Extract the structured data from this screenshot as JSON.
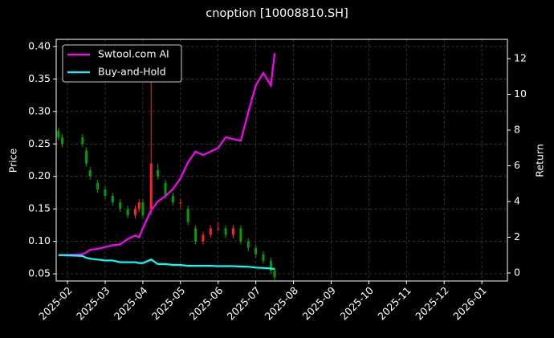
{
  "chart_data": {
    "type": "candlestick",
    "title": "cnoption [10008810.SH]",
    "ylabel": "Price",
    "y2label": "Return",
    "x": [
      0.76,
      0.86,
      1.4,
      1.5,
      1.6,
      1.8,
      2.0,
      2.2,
      2.4,
      2.6,
      2.8,
      2.9,
      3.0,
      3.22,
      3.4,
      3.6,
      3.8,
      4.0,
      4.2,
      4.4,
      4.6,
      4.8,
      5.0,
      5.2,
      5.4,
      5.6,
      5.8,
      6.0,
      6.2,
      6.4,
      6.5
    ],
    "open": [
      0.27,
      0.26,
      0.26,
      0.24,
      0.21,
      0.19,
      0.18,
      0.17,
      0.16,
      0.15,
      0.14,
      0.15,
      0.16,
      0.15,
      0.21,
      0.19,
      0.17,
      0.16,
      0.15,
      0.12,
      0.1,
      0.11,
      0.12,
      0.12,
      0.11,
      0.12,
      0.1,
      0.09,
      0.08,
      0.07,
      0.055
    ],
    "high": [
      0.275,
      0.265,
      0.265,
      0.245,
      0.215,
      0.195,
      0.185,
      0.175,
      0.165,
      0.155,
      0.155,
      0.165,
      0.165,
      0.345,
      0.22,
      0.195,
      0.175,
      0.165,
      0.155,
      0.125,
      0.115,
      0.125,
      0.13,
      0.125,
      0.125,
      0.125,
      0.105,
      0.095,
      0.085,
      0.075,
      0.06
    ],
    "low": [
      0.255,
      0.245,
      0.245,
      0.215,
      0.195,
      0.175,
      0.165,
      0.155,
      0.145,
      0.135,
      0.135,
      0.145,
      0.135,
      0.14,
      0.195,
      0.165,
      0.155,
      0.15,
      0.125,
      0.095,
      0.095,
      0.105,
      0.115,
      0.105,
      0.105,
      0.095,
      0.085,
      0.075,
      0.065,
      0.05,
      0.04
    ],
    "close": [
      0.26,
      0.25,
      0.25,
      0.22,
      0.2,
      0.18,
      0.17,
      0.16,
      0.15,
      0.14,
      0.15,
      0.16,
      0.14,
      0.22,
      0.2,
      0.17,
      0.16,
      0.16,
      0.13,
      0.1,
      0.11,
      0.12,
      0.12,
      0.11,
      0.12,
      0.1,
      0.09,
      0.08,
      0.07,
      0.055,
      0.045
    ],
    "up_color": "#ff2020",
    "down_color": "#00a000",
    "series": [
      {
        "name": "Swtool.com AI",
        "color": "#ff00ff",
        "axis": "y2",
        "values": [
          1.0,
          1.0,
          1.05,
          1.15,
          1.3,
          1.35,
          1.45,
          1.55,
          1.6,
          1.9,
          2.1,
          2.0,
          2.5,
          3.5,
          4.0,
          4.3,
          4.7,
          5.3,
          6.2,
          6.8,
          6.6,
          6.8,
          7.0,
          7.6,
          7.5,
          7.4,
          9.0,
          10.5,
          11.2,
          10.5,
          12.3
        ]
      },
      {
        "name": "Buy-and-Hold",
        "color": "#00ffff",
        "axis": "y2",
        "values": [
          1.0,
          1.0,
          0.95,
          0.85,
          0.8,
          0.75,
          0.7,
          0.7,
          0.6,
          0.6,
          0.6,
          0.55,
          0.55,
          0.75,
          0.5,
          0.5,
          0.45,
          0.45,
          0.4,
          0.4,
          0.4,
          0.4,
          0.38,
          0.38,
          0.38,
          0.36,
          0.35,
          0.3,
          0.28,
          0.25,
          0.22
        ]
      }
    ],
    "xlim": [
      0.7,
      12.68
    ],
    "xticks": [
      {
        "value": 1,
        "label": "2025-02"
      },
      {
        "value": 2,
        "label": "2025-03"
      },
      {
        "value": 3,
        "label": "2025-04"
      },
      {
        "value": 4,
        "label": "2025-05"
      },
      {
        "value": 5,
        "label": "2025-06"
      },
      {
        "value": 6,
        "label": "2025-07"
      },
      {
        "value": 7,
        "label": "2025-08"
      },
      {
        "value": 8,
        "label": "2025-09"
      },
      {
        "value": 9,
        "label": "2025-10"
      },
      {
        "value": 10,
        "label": "2025-11"
      },
      {
        "value": 11,
        "label": "2025-12"
      },
      {
        "value": 12,
        "label": "2026-01"
      }
    ],
    "ylim": [
      0.039,
      0.411
    ],
    "yticks": [
      0.05,
      {
        "value": 0.1,
        "label": "0.10"
      },
      0.15,
      {
        "value": 0.2,
        "label": "0.20"
      },
      0.25,
      {
        "value": 0.3,
        "label": "0.30"
      },
      0.35,
      {
        "value": 0.4,
        "label": "0.40"
      }
    ],
    "y2lim": [
      -0.45,
      13.08
    ],
    "y2ticks": [
      0,
      2,
      4,
      6,
      8,
      10,
      12
    ],
    "grid": true,
    "legend": "upper-left"
  }
}
